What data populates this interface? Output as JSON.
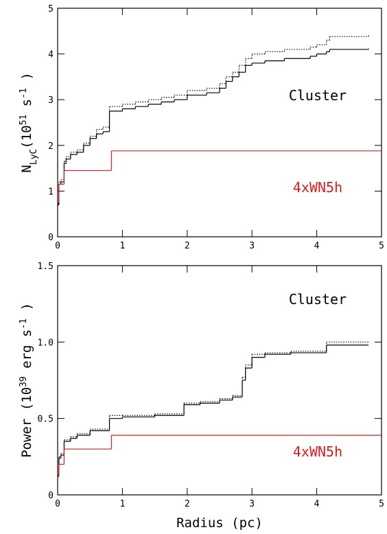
{
  "chart_data": [
    {
      "type": "line",
      "step": "post",
      "y_label": [
        {
          "text": "N"
        },
        {
          "text": "LyC",
          "shift": "sub"
        },
        {
          "text": "(10"
        },
        {
          "text": "51",
          "shift": "super"
        },
        {
          "text": " s"
        },
        {
          "text": "-1",
          "shift": "super"
        },
        {
          "text": " )"
        }
      ],
      "xlim": [
        0,
        5
      ],
      "ylim": [
        0,
        5
      ],
      "xticks": [
        0,
        1,
        2,
        3,
        4,
        5
      ],
      "yticks": [
        0,
        1,
        2,
        3,
        4,
        5
      ],
      "series": [
        {
          "name": "Cluster",
          "color": "#000000",
          "dash": "solid",
          "x": [
            0,
            0.02,
            0.05,
            0.1,
            0.13,
            0.2,
            0.3,
            0.4,
            0.5,
            0.6,
            0.7,
            0.8,
            1.0,
            1.2,
            1.4,
            1.6,
            1.8,
            2.0,
            2.3,
            2.5,
            2.6,
            2.7,
            2.8,
            2.9,
            3.0,
            3.2,
            3.5,
            3.9,
            4.0,
            4.15,
            4.2,
            4.8
          ],
          "values": [
            0.7,
            1.15,
            1.2,
            1.6,
            1.7,
            1.8,
            1.85,
            2.0,
            2.15,
            2.25,
            2.3,
            2.75,
            2.8,
            2.85,
            2.9,
            2.95,
            3.0,
            3.1,
            3.15,
            3.25,
            3.4,
            3.5,
            3.6,
            3.75,
            3.8,
            3.85,
            3.9,
            3.95,
            4.0,
            4.05,
            4.1,
            4.12
          ]
        },
        {
          "color": "#000000",
          "dash": "dotted",
          "x": [
            0,
            0.02,
            0.05,
            0.1,
            0.13,
            0.2,
            0.3,
            0.4,
            0.5,
            0.6,
            0.7,
            0.8,
            1.0,
            1.2,
            1.4,
            1.6,
            1.8,
            2.0,
            2.3,
            2.5,
            2.6,
            2.7,
            2.8,
            2.9,
            3.0,
            3.2,
            3.5,
            3.9,
            4.0,
            4.15,
            4.2,
            4.8
          ],
          "values": [
            0.72,
            1.2,
            1.25,
            1.65,
            1.75,
            1.85,
            1.9,
            2.05,
            2.2,
            2.35,
            2.4,
            2.85,
            2.9,
            2.95,
            3.0,
            3.05,
            3.1,
            3.2,
            3.25,
            3.35,
            3.5,
            3.6,
            3.75,
            3.9,
            4.0,
            4.05,
            4.1,
            4.15,
            4.2,
            4.3,
            4.38,
            4.42
          ]
        },
        {
          "name": "4xWN5h",
          "color": "#e41a1c",
          "dash": "solid",
          "x": [
            0,
            0.02,
            0.1,
            0.83,
            5
          ],
          "values": [
            0.75,
            1.15,
            1.45,
            1.88,
            1.88
          ]
        }
      ]
    },
    {
      "type": "line",
      "step": "post",
      "y_label": [
        {
          "text": "Power (10"
        },
        {
          "text": "39",
          "shift": "super"
        },
        {
          "text": " erg s"
        },
        {
          "text": "-1",
          "shift": "super"
        },
        {
          "text": " )"
        }
      ],
      "x_label": "Radius (pc)",
      "xlim": [
        0,
        5
      ],
      "ylim": [
        0,
        1.5
      ],
      "xticks": [
        0,
        1,
        2,
        3,
        4,
        5
      ],
      "yticks": [
        0,
        0.5,
        {
          "value": 1,
          "label": "1.0"
        },
        1.5
      ],
      "series": [
        {
          "name": "Cluster",
          "color": "#000000",
          "dash": "solid",
          "x": [
            0,
            0.02,
            0.05,
            0.1,
            0.2,
            0.3,
            0.5,
            0.8,
            1.0,
            1.5,
            1.95,
            2.2,
            2.5,
            2.7,
            2.85,
            2.9,
            3.0,
            3.2,
            3.6,
            4.15,
            4.8
          ],
          "values": [
            0.12,
            0.24,
            0.26,
            0.35,
            0.37,
            0.39,
            0.42,
            0.5,
            0.51,
            0.52,
            0.59,
            0.6,
            0.62,
            0.64,
            0.75,
            0.83,
            0.9,
            0.92,
            0.93,
            0.98,
            0.98
          ]
        },
        {
          "color": "#000000",
          "dash": "dotted",
          "x": [
            0,
            0.02,
            0.05,
            0.1,
            0.2,
            0.3,
            0.5,
            0.8,
            1.0,
            1.5,
            1.95,
            2.2,
            2.5,
            2.7,
            2.85,
            2.9,
            3.0,
            3.2,
            3.6,
            4.15,
            4.8
          ],
          "values": [
            0.13,
            0.25,
            0.27,
            0.36,
            0.38,
            0.4,
            0.43,
            0.52,
            0.52,
            0.53,
            0.6,
            0.61,
            0.63,
            0.65,
            0.77,
            0.85,
            0.92,
            0.93,
            0.94,
            1.0,
            1.0
          ]
        },
        {
          "name": "4xWN5h",
          "color": "#e41a1c",
          "dash": "solid",
          "x": [
            0,
            0.02,
            0.1,
            0.83,
            5
          ],
          "values": [
            0.12,
            0.2,
            0.3,
            0.39,
            0.39
          ]
        }
      ]
    }
  ]
}
